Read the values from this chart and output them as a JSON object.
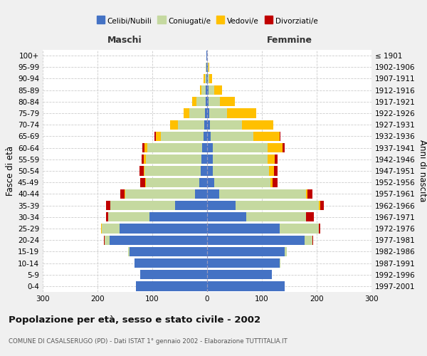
{
  "age_groups": [
    "0-4",
    "5-9",
    "10-14",
    "15-19",
    "20-24",
    "25-29",
    "30-34",
    "35-39",
    "40-44",
    "45-49",
    "50-54",
    "55-59",
    "60-64",
    "65-69",
    "70-74",
    "75-79",
    "80-84",
    "85-89",
    "90-94",
    "95-99",
    "100+"
  ],
  "birth_years": [
    "1997-2001",
    "1992-1996",
    "1987-1991",
    "1982-1986",
    "1977-1981",
    "1972-1976",
    "1967-1971",
    "1962-1966",
    "1957-1961",
    "1952-1956",
    "1947-1951",
    "1942-1946",
    "1937-1941",
    "1932-1936",
    "1927-1931",
    "1922-1926",
    "1917-1921",
    "1912-1916",
    "1907-1911",
    "1902-1906",
    "≤ 1901"
  ],
  "male_celibi": [
    130,
    122,
    132,
    142,
    178,
    160,
    105,
    58,
    22,
    14,
    12,
    10,
    9,
    7,
    5,
    4,
    3,
    2,
    1,
    1,
    1
  ],
  "male_coniugati": [
    0,
    0,
    0,
    2,
    9,
    32,
    76,
    118,
    128,
    98,
    102,
    102,
    100,
    78,
    48,
    28,
    17,
    8,
    3,
    1,
    0
  ],
  "male_vedovi": [
    0,
    0,
    0,
    0,
    0,
    1,
    0,
    0,
    1,
    1,
    2,
    3,
    5,
    9,
    14,
    11,
    7,
    3,
    2,
    1,
    0
  ],
  "male_divorziati": [
    0,
    0,
    0,
    0,
    1,
    1,
    3,
    9,
    7,
    9,
    7,
    5,
    4,
    2,
    0,
    0,
    0,
    0,
    0,
    0,
    0
  ],
  "female_nubili": [
    142,
    118,
    132,
    142,
    178,
    132,
    72,
    52,
    22,
    13,
    10,
    10,
    10,
    7,
    5,
    4,
    3,
    2,
    1,
    1,
    0
  ],
  "female_coniugate": [
    0,
    0,
    2,
    4,
    14,
    72,
    108,
    152,
    158,
    103,
    103,
    100,
    100,
    78,
    58,
    33,
    20,
    11,
    3,
    1,
    0
  ],
  "female_vedove": [
    0,
    0,
    0,
    0,
    0,
    0,
    1,
    2,
    3,
    4,
    9,
    14,
    28,
    48,
    58,
    52,
    28,
    14,
    5,
    2,
    0
  ],
  "female_divorziate": [
    0,
    0,
    0,
    0,
    2,
    2,
    14,
    7,
    9,
    9,
    7,
    4,
    4,
    1,
    0,
    0,
    0,
    0,
    0,
    0,
    0
  ],
  "colors_celibi": "#4472c4",
  "colors_coniugati": "#c5d9a0",
  "colors_vedovi": "#ffc000",
  "colors_divorziati": "#c00000",
  "title": "Popolazione per età, sesso e stato civile - 2002",
  "subtitle": "COMUNE DI CASALSERUGO (PD) - Dati ISTAT 1° gennaio 2002 - Elaborazione TUTTITALIA.IT",
  "legend_labels": [
    "Celibi/Nubili",
    "Coniugati/e",
    "Vedovi/e",
    "Divorziati/e"
  ],
  "bg_color": "#f0f0f0",
  "plot_bg_color": "#ffffff",
  "maschi_label": "Maschi",
  "femmine_label": "Femmine",
  "fasce_label": "Fasce di età",
  "anni_label": "Anni di nascita",
  "xlim": 300
}
